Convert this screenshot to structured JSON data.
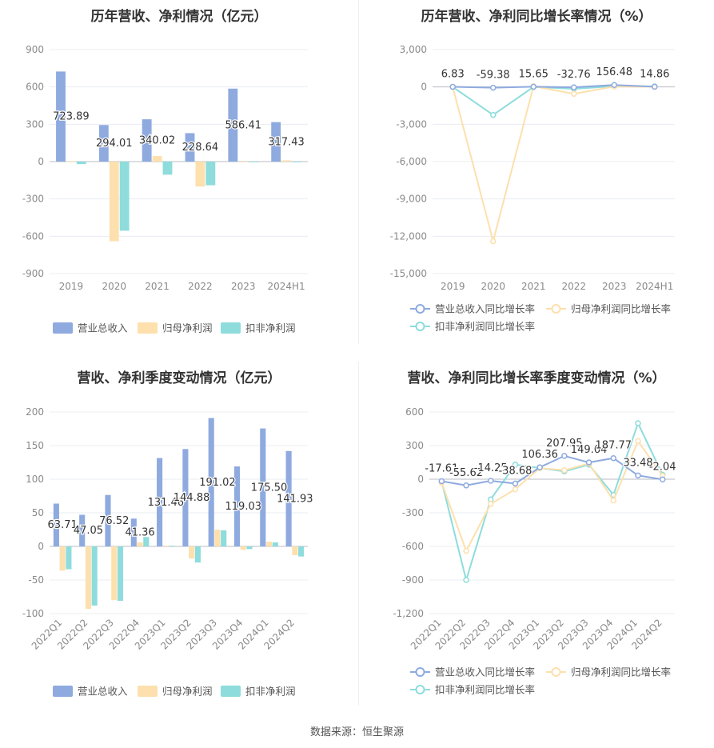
{
  "colors": {
    "revenue": "#8eaadf",
    "net_profit": "#fde0ad",
    "deducted_profit": "#8edcdc",
    "grid": "#e9ecf2",
    "axis_text": "#8a8a8a",
    "label_text": "#333333"
  },
  "footer": {
    "source": "数据来源：恒生聚源"
  },
  "chart_data": [
    {
      "id": "annual_amounts",
      "type": "bar",
      "title": "历年营收、净利情况（亿元）",
      "categories": [
        "2019",
        "2020",
        "2021",
        "2022",
        "2023",
        "2024H1"
      ],
      "ylim": [
        -900,
        900
      ],
      "yticks": [
        900,
        600,
        300,
        0,
        -300,
        -600,
        -900
      ],
      "ytick_labels": [
        "900",
        "600",
        "300",
        "0",
        "-300",
        "-600",
        "-900"
      ],
      "series": [
        {
          "name": "营业总收入",
          "values": [
            723.89,
            294.01,
            340.02,
            228.64,
            586.41,
            317.43
          ],
          "labels": [
            "723.89",
            "294.01",
            "340.02",
            "228.64",
            "586.41",
            "317.43"
          ]
        },
        {
          "name": "归母净利润",
          "values": [
            1,
            -640,
            45,
            -200,
            0,
            10
          ]
        },
        {
          "name": "扣非净利润",
          "values": [
            -20,
            -555,
            -105,
            -190,
            0,
            0
          ]
        }
      ],
      "legend": "bottom",
      "grid": true
    },
    {
      "id": "annual_growth",
      "type": "line",
      "title": "历年营收、净利同比增长率情况（%）",
      "categories": [
        "2019",
        "2020",
        "2021",
        "2022",
        "2023",
        "2024H1"
      ],
      "ylim": [
        -15000,
        3000
      ],
      "yticks": [
        3000,
        0,
        -3000,
        -6000,
        -9000,
        -12000,
        -15000
      ],
      "ytick_labels": [
        "3,000",
        "0",
        "-3,000",
        "-6,000",
        "-9,000",
        "-12,000",
        "-15,000"
      ],
      "series": [
        {
          "name": "营业总收入同比增长率",
          "values": [
            6.83,
            -59.38,
            15.65,
            -32.76,
            156.48,
            14.86
          ],
          "labels": [
            "6.83",
            "-59.38",
            "15.65",
            "-32.76",
            "156.48",
            "14.86"
          ]
        },
        {
          "name": "归母净利润同比增长率",
          "values": [
            0,
            -12400,
            50,
            -550,
            30,
            10
          ]
        },
        {
          "name": "扣非净利润同比增长率",
          "values": [
            0,
            -2250,
            0,
            -150,
            60,
            40
          ]
        }
      ],
      "legend": "bottom",
      "grid": true
    },
    {
      "id": "quarterly_amounts",
      "type": "bar",
      "title": "营收、净利季度变动情况（亿元）",
      "categories": [
        "2022Q1",
        "2022Q2",
        "2022Q3",
        "2022Q4",
        "2023Q1",
        "2023Q2",
        "2023Q3",
        "2023Q4",
        "2024Q1",
        "2024Q2"
      ],
      "ylim": [
        -100,
        200
      ],
      "yticks": [
        200,
        150,
        100,
        50,
        0,
        -50,
        -100
      ],
      "ytick_labels": [
        "200",
        "150",
        "100",
        "50",
        "0",
        "-50",
        "-100"
      ],
      "series": [
        {
          "name": "营业总收入",
          "values": [
            63.71,
            47.05,
            76.52,
            41.36,
            131.46,
            144.88,
            191.02,
            119.03,
            175.5,
            141.93
          ],
          "labels": [
            "63.71",
            "47.05",
            "76.52",
            "41.36",
            "131.46",
            "144.88",
            "191.02",
            "119.03",
            "175.50",
            "141.93"
          ]
        },
        {
          "name": "归母净利润",
          "values": [
            -36,
            -93,
            -80,
            6,
            1,
            -18,
            25,
            -5,
            7,
            -13
          ]
        },
        {
          "name": "扣非净利润",
          "values": [
            -34,
            -88,
            -81,
            14,
            1,
            -24,
            24,
            -4,
            6,
            -15
          ]
        }
      ],
      "legend": "bottom",
      "grid": true
    },
    {
      "id": "quarterly_growth",
      "type": "line",
      "title": "营收、净利同比增长率季度变动情况（%）",
      "categories": [
        "2022Q1",
        "2022Q2",
        "2022Q3",
        "2022Q4",
        "2023Q1",
        "2023Q2",
        "2023Q3",
        "2023Q4",
        "2024Q1",
        "2024Q2"
      ],
      "ylim": [
        -1200,
        600
      ],
      "yticks": [
        600,
        300,
        0,
        -300,
        -600,
        -900,
        -1200
      ],
      "ytick_labels": [
        "600",
        "300",
        "0",
        "-300",
        "-600",
        "-900",
        "-1,200"
      ],
      "series": [
        {
          "name": "营业总收入同比增长率",
          "values": [
            -17.61,
            -55.62,
            -14.25,
            -38.68,
            106.36,
            207.95,
            149.64,
            187.77,
            33.48,
            -2.04
          ],
          "labels": [
            "-17.61",
            "-55.62",
            "-14.25",
            "-38.68",
            "106.36",
            "207.95",
            "149.64",
            "187.77",
            "33.48",
            "-2.04"
          ]
        },
        {
          "name": "归母净利润同比增长率",
          "values": [
            -30,
            -640,
            -220,
            -90,
            100,
            80,
            140,
            -190,
            340,
            30
          ]
        },
        {
          "name": "扣非净利润同比增长率",
          "values": [
            -20,
            -900,
            -180,
            130,
            100,
            70,
            130,
            -140,
            500,
            40
          ]
        }
      ],
      "legend": "bottom",
      "grid": true
    }
  ]
}
